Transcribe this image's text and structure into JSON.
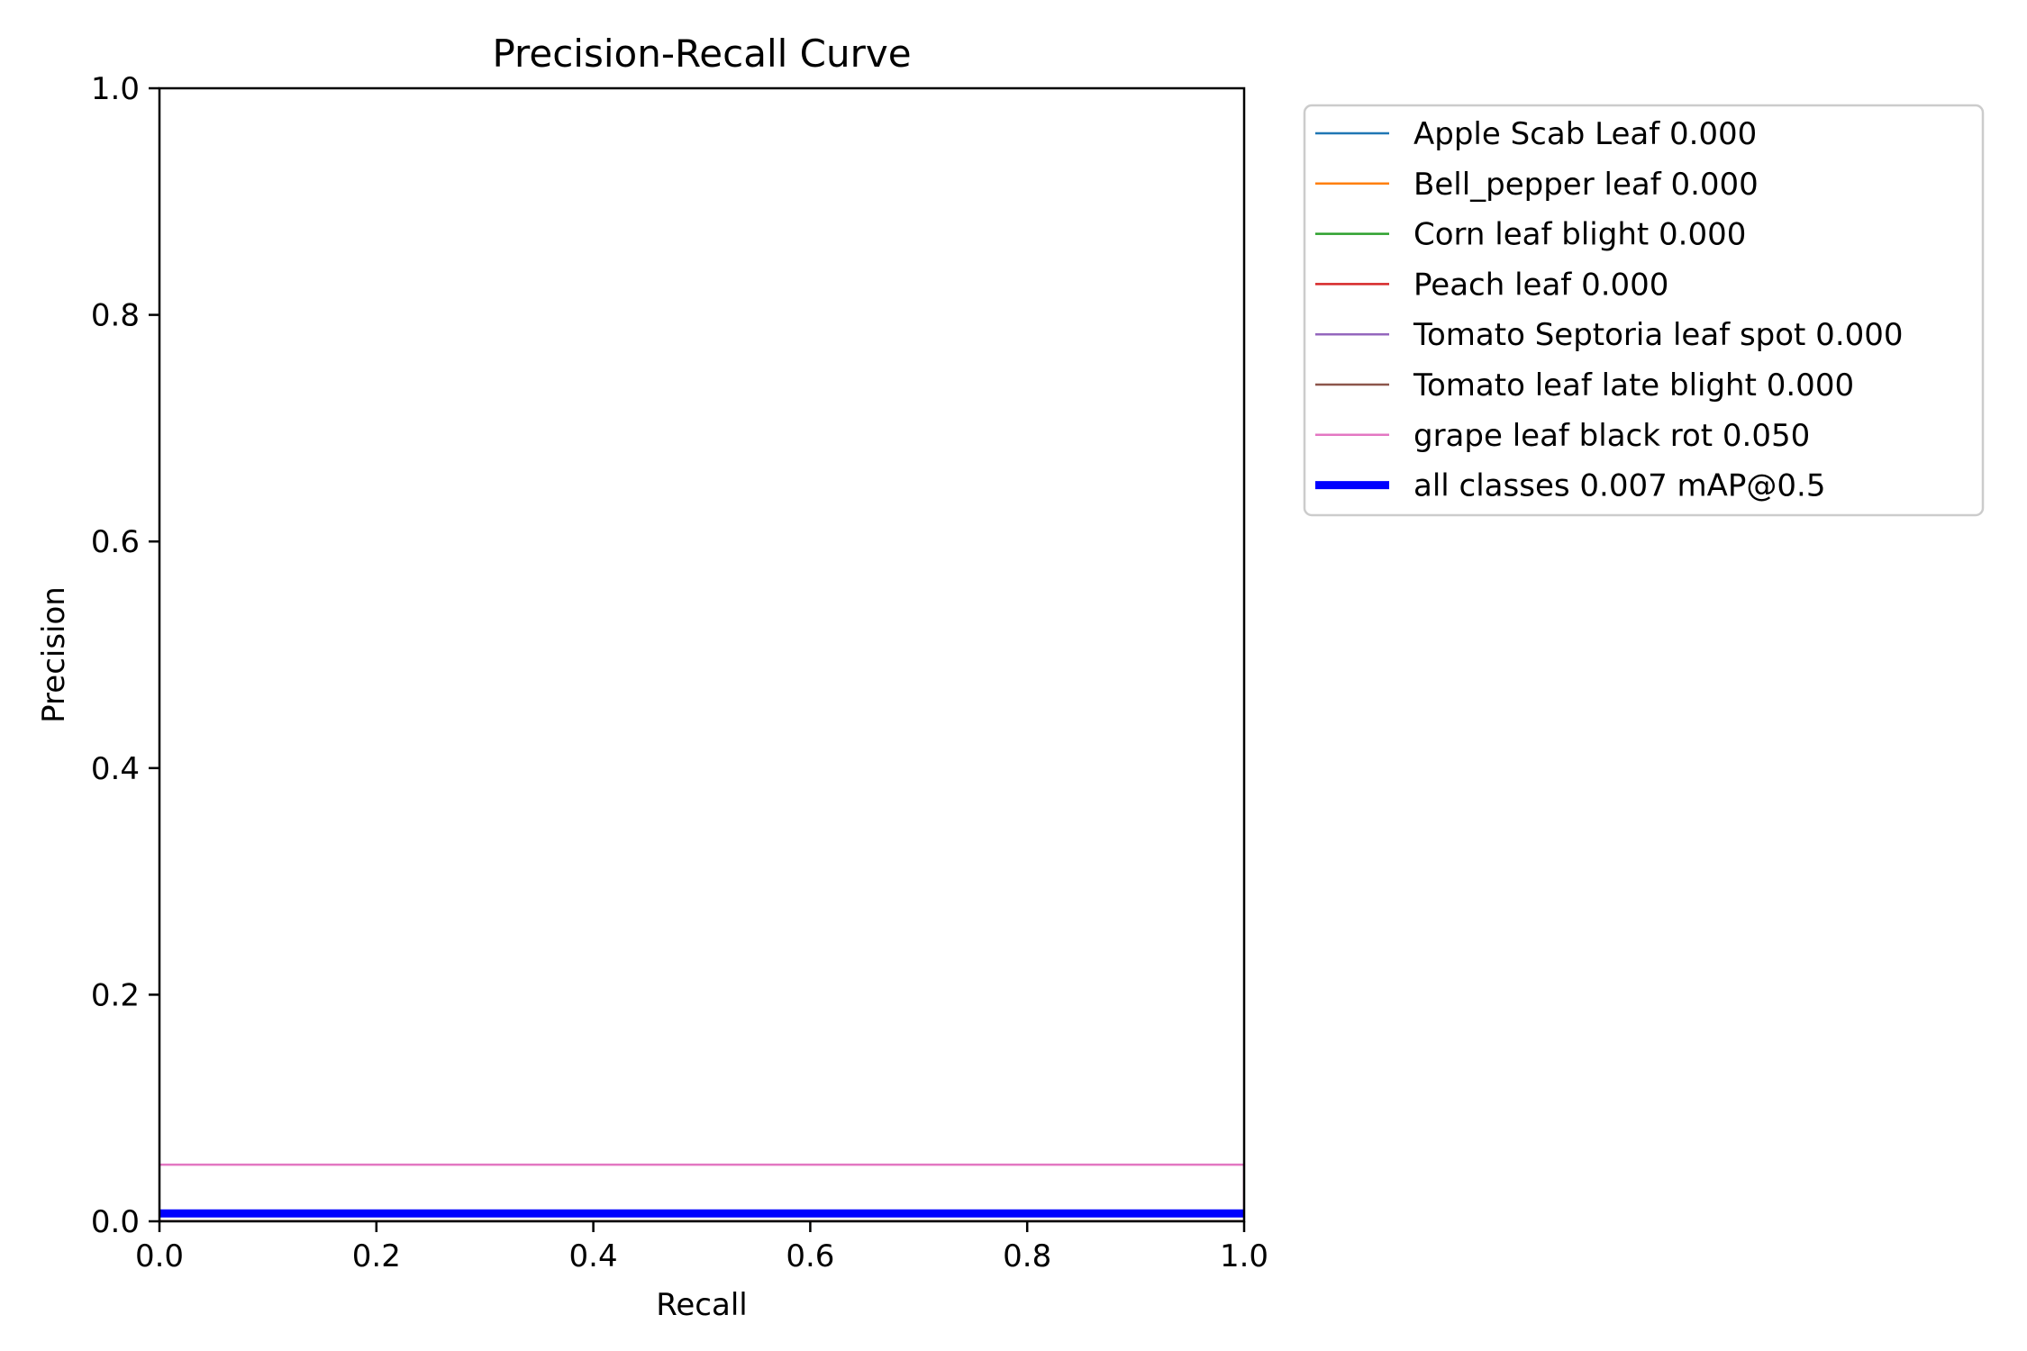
{
  "chart_data": {
    "type": "line",
    "title": "Precision-Recall Curve",
    "xlabel": "Recall",
    "ylabel": "Precision",
    "xlim": [
      0,
      1
    ],
    "ylim": [
      0,
      1
    ],
    "x_ticks": [
      0.0,
      0.2,
      0.4,
      0.6,
      0.8,
      1.0
    ],
    "y_ticks": [
      0.0,
      0.2,
      0.4,
      0.6,
      0.8,
      1.0
    ],
    "x_tick_labels": [
      "0.0",
      "0.2",
      "0.4",
      "0.6",
      "0.8",
      "1.0"
    ],
    "y_tick_labels": [
      "0.0",
      "0.2",
      "0.4",
      "0.6",
      "0.8",
      "1.0"
    ],
    "grid": false,
    "legend_position": "outside-top-right",
    "series": [
      {
        "name": "Apple Scab Leaf 0.000",
        "color": "#1f77b4",
        "emphasis": false,
        "x": [
          0,
          1
        ],
        "y": [
          0.0,
          0.0
        ]
      },
      {
        "name": "Bell_pepper leaf 0.000",
        "color": "#ff7f0e",
        "emphasis": false,
        "x": [
          0,
          1
        ],
        "y": [
          0.0,
          0.0
        ]
      },
      {
        "name": "Corn leaf blight 0.000",
        "color": "#2ca02c",
        "emphasis": false,
        "x": [
          0,
          1
        ],
        "y": [
          0.0,
          0.0
        ]
      },
      {
        "name": "Peach leaf 0.000",
        "color": "#d62728",
        "emphasis": false,
        "x": [
          0,
          1
        ],
        "y": [
          0.0,
          0.0
        ]
      },
      {
        "name": "Tomato Septoria leaf spot 0.000",
        "color": "#9467bd",
        "emphasis": false,
        "x": [
          0,
          1
        ],
        "y": [
          0.0,
          0.0
        ]
      },
      {
        "name": "Tomato leaf late blight 0.000",
        "color": "#8c564b",
        "emphasis": false,
        "x": [
          0,
          1
        ],
        "y": [
          0.0,
          0.0
        ]
      },
      {
        "name": "grape leaf black rot 0.050",
        "color": "#e377c2",
        "emphasis": false,
        "x": [
          0,
          1,
          1
        ],
        "y": [
          0.05,
          0.05,
          0.0
        ]
      },
      {
        "name": "all classes 0.007 mAP@0.5",
        "color": "#0000ff",
        "emphasis": true,
        "x": [
          0,
          1
        ],
        "y": [
          0.007,
          0.007
        ]
      }
    ]
  }
}
